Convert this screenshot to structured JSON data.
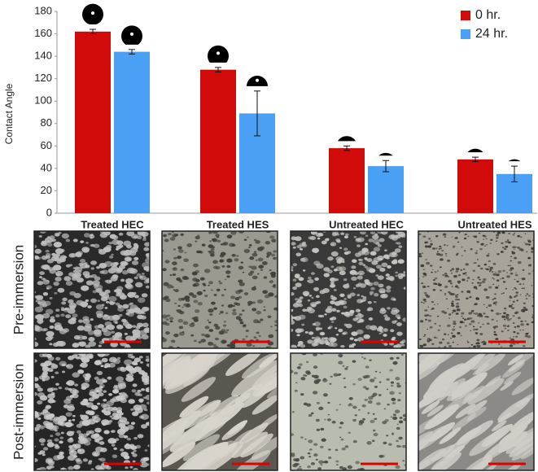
{
  "chart_data": {
    "type": "bar",
    "y_label": "Contact Angle",
    "categories": [
      "Treated HEC",
      "Treated HES",
      "Untreated HEC",
      "Untreated HES"
    ],
    "series": [
      {
        "name": "0 hr.",
        "color": "#d10a0a",
        "values": [
          162,
          128,
          58,
          48
        ],
        "errors": [
          2,
          2,
          2,
          2
        ]
      },
      {
        "name": "24 hr.",
        "color": "#4aa0f5",
        "values": [
          144,
          89,
          42,
          35
        ],
        "errors": [
          2,
          20,
          5,
          7
        ]
      }
    ],
    "ylim": [
      0,
      180
    ],
    "yticks": [
      0,
      20,
      40,
      60,
      80,
      100,
      120,
      140,
      160,
      180
    ],
    "grid": false,
    "legend": "top-right",
    "image_rows": [
      "Pre-immersion",
      "Post-immersion"
    ]
  }
}
